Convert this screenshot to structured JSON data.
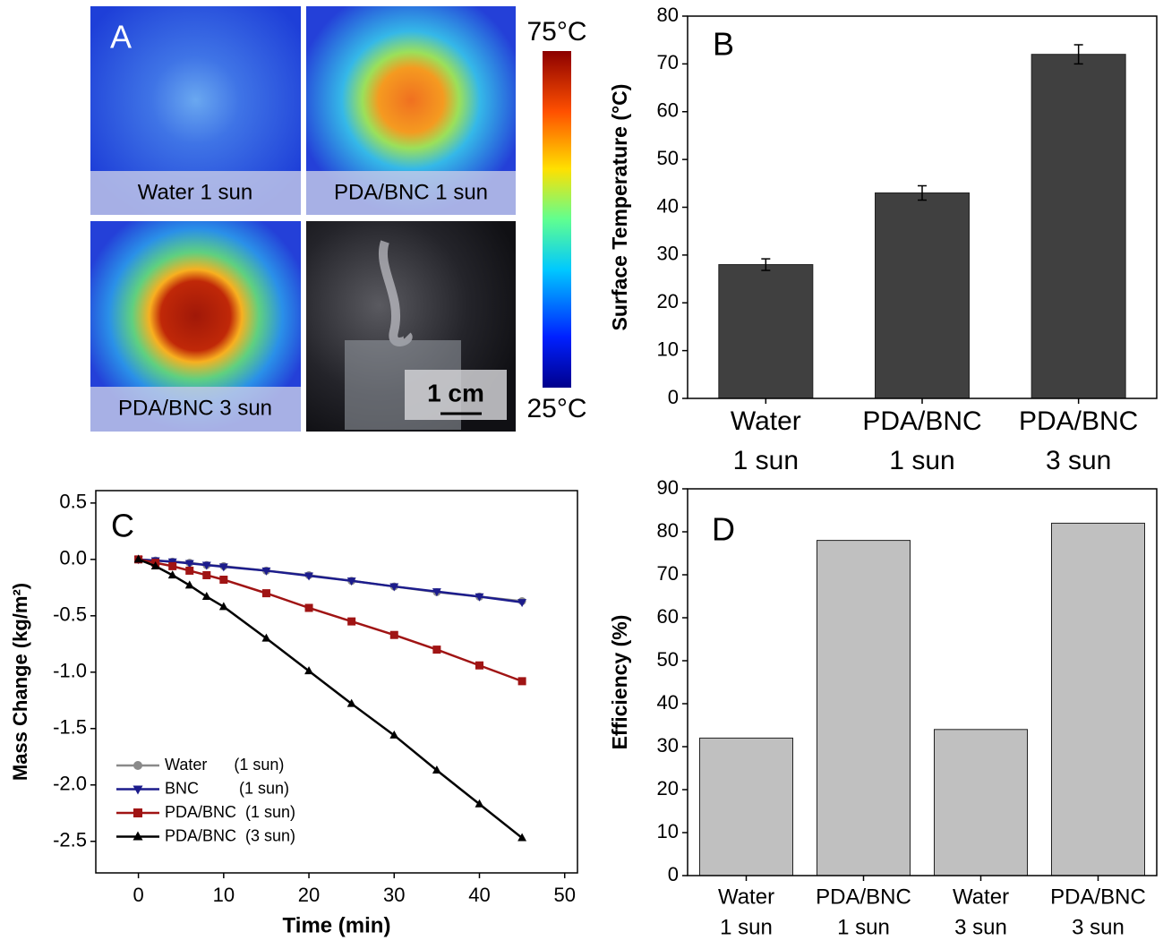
{
  "panel_a": {
    "label": "A",
    "tiles": [
      "Water 1 sun",
      "PDA/BNC 1 sun",
      "PDA/BNC 3 sun"
    ],
    "scale_bar": "1 cm",
    "colorbar_max": "75°C",
    "colorbar_min": "25°C"
  },
  "chart_data": [
    {
      "type": "bar",
      "label": "B",
      "ylabel": "Surface Temperature (°C)",
      "categories": [
        [
          "Water",
          "1 sun"
        ],
        [
          "PDA/BNC",
          "1 sun"
        ],
        [
          "PDA/BNC",
          "3 sun"
        ]
      ],
      "values": [
        28,
        43,
        72
      ],
      "errors": [
        1.2,
        1.5,
        2
      ],
      "color": "#404040",
      "ylim": [
        0,
        80
      ],
      "yticks": [
        0,
        10,
        20,
        30,
        40,
        50,
        60,
        70,
        80
      ]
    },
    {
      "type": "line",
      "label": "C",
      "xlabel": "Time (min)",
      "ylabel": "Mass Change (kg/m²)",
      "x": [
        0,
        2,
        4,
        6,
        8,
        10,
        15,
        20,
        25,
        30,
        35,
        40,
        45
      ],
      "series": [
        {
          "name": "Water      (1 sun)",
          "color": "#8a8a8a",
          "marker": "circle",
          "values": [
            0,
            -0.01,
            -0.02,
            -0.03,
            -0.05,
            -0.06,
            -0.1,
            -0.14,
            -0.19,
            -0.24,
            -0.29,
            -0.33,
            -0.37
          ]
        },
        {
          "name": "BNC         (1 sun)",
          "color": "#1c1c8c",
          "marker": "triangle-down",
          "values": [
            0,
            -0.01,
            -0.02,
            -0.035,
            -0.05,
            -0.065,
            -0.1,
            -0.145,
            -0.19,
            -0.24,
            -0.285,
            -0.33,
            -0.38
          ]
        },
        {
          "name": "PDA/BNC  (1 sun)",
          "color": "#a01414",
          "marker": "square",
          "values": [
            0,
            -0.03,
            -0.06,
            -0.1,
            -0.14,
            -0.18,
            -0.3,
            -0.43,
            -0.55,
            -0.67,
            -0.8,
            -0.94,
            -1.08
          ]
        },
        {
          "name": "PDA/BNC  (3 sun)",
          "color": "#000000",
          "marker": "triangle-up",
          "values": [
            0,
            -0.06,
            -0.14,
            -0.23,
            -0.33,
            -0.42,
            -0.7,
            -0.99,
            -1.28,
            -1.56,
            -1.87,
            -2.17,
            -2.47
          ]
        }
      ],
      "xlim": [
        -5,
        51.5
      ],
      "xticks": [
        0,
        10,
        20,
        30,
        40,
        50
      ],
      "ylim": [
        -2.78,
        0.61
      ],
      "yticks": [
        {
          "value": -2.5,
          "label": "-2.5"
        },
        {
          "value": -2,
          "label": "-2.0"
        },
        {
          "value": -1.5,
          "label": "-1.5"
        },
        {
          "value": -1,
          "label": "-1.0"
        },
        {
          "value": -0.5,
          "label": "-0.5"
        },
        {
          "value": 0,
          "label": "0.0"
        },
        {
          "value": 0.5,
          "label": "0.5"
        }
      ],
      "legend": "lower left"
    },
    {
      "type": "bar",
      "label": "D",
      "ylabel": "Efficiency (%)",
      "categories": [
        [
          "Water",
          "1 sun"
        ],
        [
          "PDA/BNC",
          "1 sun"
        ],
        [
          "Water",
          "3 sun"
        ],
        [
          "PDA/BNC",
          "3 sun"
        ]
      ],
      "values": [
        32,
        78,
        34,
        82
      ],
      "color": "#c0c0c0",
      "ylim": [
        0,
        90
      ],
      "yticks": [
        0,
        10,
        20,
        30,
        40,
        50,
        60,
        70,
        80,
        90
      ]
    }
  ]
}
